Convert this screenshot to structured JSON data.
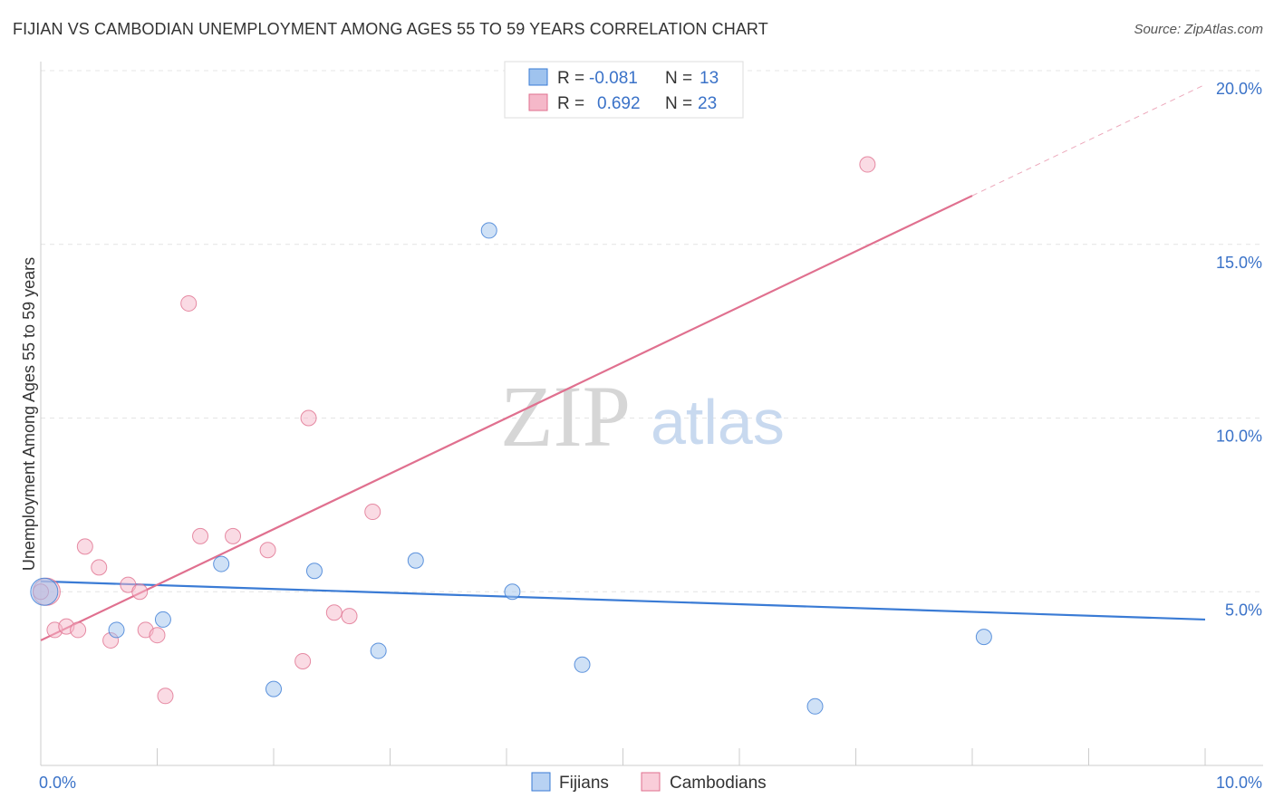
{
  "title": "FIJIAN VS CAMBODIAN UNEMPLOYMENT AMONG AGES 55 TO 59 YEARS CORRELATION CHART",
  "source": "Source: ZipAtlas.com",
  "watermark": {
    "zip": "ZIP",
    "atlas": "atlas"
  },
  "legend_top": [
    {
      "r_label": "R =",
      "r_value": "-0.081",
      "n_label": "N =",
      "n_value": "13",
      "color": "#9fc3ee"
    },
    {
      "r_label": "R =",
      "r_value": "0.692",
      "n_label": "N =",
      "n_value": "23",
      "color": "#f5b8c9"
    }
  ],
  "colors": {
    "fijian": "#3a7bd5",
    "cambodian": "#e0708f",
    "axis_text": "#3a72c8"
  },
  "chart_data": {
    "type": "scatter",
    "title": "FIJIAN VS CAMBODIAN UNEMPLOYMENT AMONG AGES 55 TO 59 YEARS CORRELATION CHART",
    "xlabel": "",
    "ylabel": "Unemployment Among Ages 55 to 59 years",
    "xlim": [
      0,
      10
    ],
    "ylim": [
      0,
      20
    ],
    "x_tick_labels": [
      "0.0%",
      "10.0%"
    ],
    "y_ticks": [
      5,
      10,
      15,
      20
    ],
    "y_tick_labels": [
      "5.0%",
      "10.0%",
      "15.0%",
      "20.0%"
    ],
    "grid": true,
    "legend_position": "bottom",
    "series": [
      {
        "name": "Fijians",
        "color": "#9fc3ee",
        "stroke": "#3a7bd5",
        "points": [
          [
            0.03,
            5.0
          ],
          [
            0.65,
            3.9
          ],
          [
            1.05,
            4.2
          ],
          [
            1.55,
            5.8
          ],
          [
            2.0,
            2.2
          ],
          [
            2.35,
            5.6
          ],
          [
            2.9,
            3.3
          ],
          [
            3.22,
            5.9
          ],
          [
            3.85,
            15.4
          ],
          [
            4.05,
            5.0
          ],
          [
            4.65,
            2.9
          ],
          [
            6.65,
            1.7
          ],
          [
            8.1,
            3.7
          ]
        ],
        "trend": {
          "x": [
            0,
            10
          ],
          "y": [
            5.3,
            4.2
          ]
        }
      },
      {
        "name": "Cambodians",
        "color": "#f5b8c9",
        "stroke": "#e0708f",
        "points": [
          [
            0.05,
            5.0
          ],
          [
            0.12,
            3.9
          ],
          [
            0.22,
            4.0
          ],
          [
            0.32,
            3.9
          ],
          [
            0.38,
            6.3
          ],
          [
            0.5,
            5.7
          ],
          [
            0.6,
            3.6
          ],
          [
            0.75,
            5.2
          ],
          [
            0.85,
            5.0
          ],
          [
            0.9,
            3.9
          ],
          [
            1.0,
            3.75
          ],
          [
            1.07,
            2.0
          ],
          [
            1.27,
            13.3
          ],
          [
            1.37,
            6.6
          ],
          [
            1.65,
            6.6
          ],
          [
            1.95,
            6.2
          ],
          [
            2.25,
            3.0
          ],
          [
            2.3,
            10.0
          ],
          [
            2.52,
            4.4
          ],
          [
            2.65,
            4.3
          ],
          [
            2.85,
            7.3
          ],
          [
            7.1,
            17.3
          ],
          [
            0.0,
            5.0
          ]
        ],
        "trend": {
          "x": [
            0,
            8.0
          ],
          "y": [
            3.6,
            16.4
          ]
        },
        "trend_extension": {
          "x": [
            8.0,
            10.0
          ],
          "y": [
            16.4,
            19.6
          ]
        }
      }
    ]
  }
}
